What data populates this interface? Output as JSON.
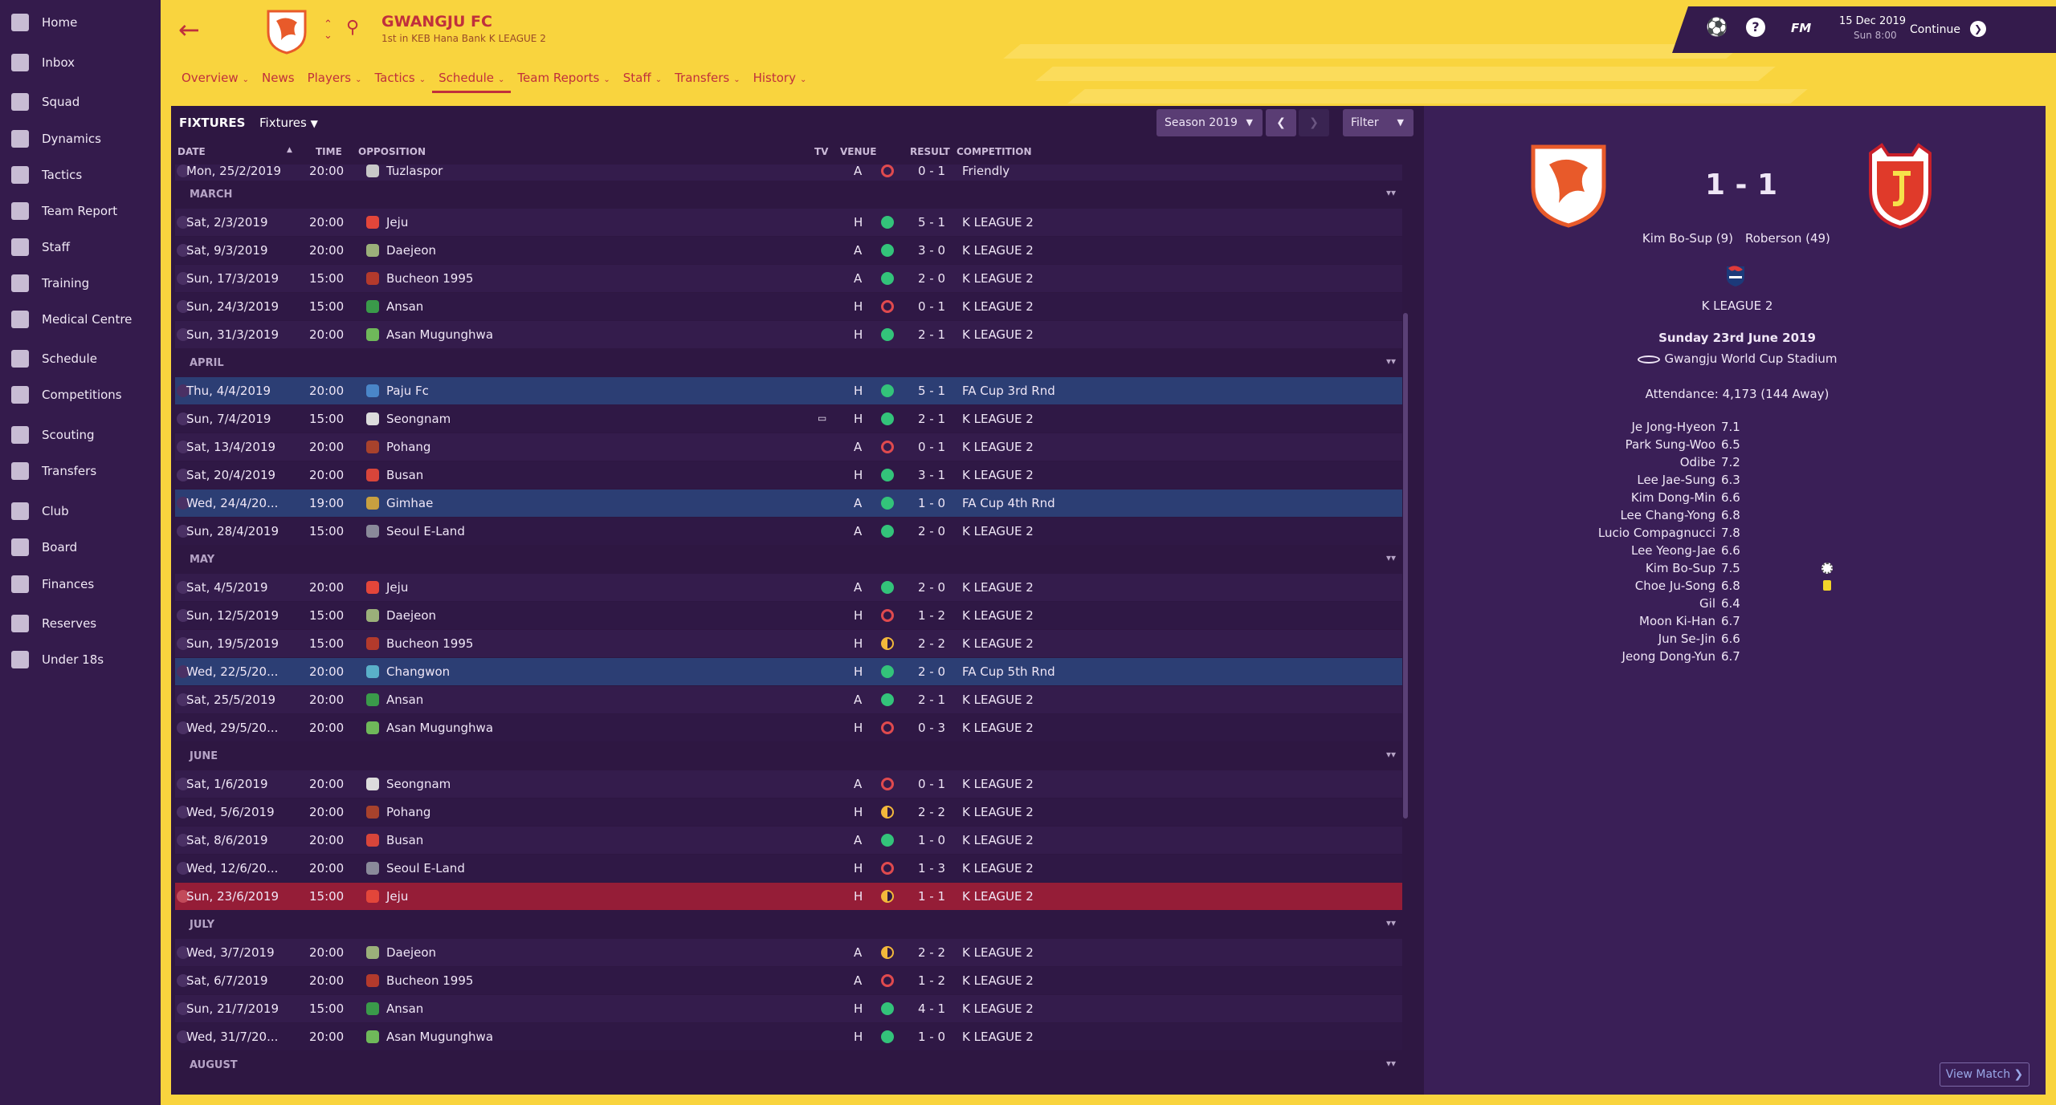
{
  "sidebar": {
    "items": [
      {
        "label": "Home",
        "icon": "home-icon"
      },
      {
        "label": "Inbox",
        "icon": "inbox-icon"
      },
      {
        "label": "Squad",
        "icon": "squad-icon"
      },
      {
        "label": "Dynamics",
        "icon": "dynamics-icon"
      },
      {
        "label": "Tactics",
        "icon": "tactics-icon"
      },
      {
        "label": "Team Report",
        "icon": "report-icon"
      },
      {
        "label": "Staff",
        "icon": "staff-icon"
      },
      {
        "label": "Training",
        "icon": "training-icon"
      },
      {
        "label": "Medical Centre",
        "icon": "medical-icon"
      },
      {
        "label": "Schedule",
        "icon": "calendar-icon"
      },
      {
        "label": "Competitions",
        "icon": "trophy-icon"
      },
      {
        "label": "Scouting",
        "icon": "search-icon"
      },
      {
        "label": "Transfers",
        "icon": "transfer-icon"
      },
      {
        "label": "Club",
        "icon": "shield-icon"
      },
      {
        "label": "Board",
        "icon": "briefcase-icon"
      },
      {
        "label": "Finances",
        "icon": "money-icon"
      },
      {
        "label": "Reserves",
        "icon": "reserves-icon"
      },
      {
        "label": "Under 18s",
        "icon": "u18-icon"
      }
    ]
  },
  "header": {
    "club_name": "GWANGJU FC",
    "club_sub": "1st in KEB Hana Bank K LEAGUE 2",
    "nav": [
      "Overview",
      "News",
      "Players",
      "Tactics",
      "Schedule",
      "Team Reports",
      "Staff",
      "Transfers",
      "History"
    ],
    "nav_dropdown": [
      true,
      false,
      true,
      true,
      true,
      true,
      true,
      true,
      true
    ],
    "active_nav": "Schedule",
    "date": "15 Dec 2019",
    "time": "Sun 8:00",
    "fm_label": "FM",
    "continue_label": "Continue"
  },
  "toolbar": {
    "title": "FIXTURES",
    "view": "Fixtures",
    "season": "Season 2019",
    "filter": "Filter"
  },
  "columns": {
    "date": "DATE",
    "time": "TIME",
    "opposition": "OPPOSITION",
    "tv": "TV",
    "venue": "VENUE",
    "result": "RESULT",
    "competition": "COMPETITION"
  },
  "fixtures": [
    {
      "type": "row",
      "date": "Mon, 25/2/2019",
      "time": "20:00",
      "opp": "Tuzlaspor",
      "venue": "A",
      "outcome": "L",
      "result": "0 - 1",
      "comp": "Friendly",
      "badge": "#c8c8c8",
      "partial": true
    },
    {
      "type": "month",
      "label": "MARCH"
    },
    {
      "type": "row",
      "date": "Sat, 2/3/2019",
      "time": "20:00",
      "opp": "Jeju",
      "venue": "H",
      "outcome": "W",
      "result": "5 - 1",
      "comp": "K LEAGUE 2",
      "badge": "#e3463a"
    },
    {
      "type": "row",
      "date": "Sat, 9/3/2019",
      "time": "20:00",
      "opp": "Daejeon",
      "venue": "A",
      "outcome": "W",
      "result": "3 - 0",
      "comp": "K LEAGUE 2",
      "badge": "#9bb07a"
    },
    {
      "type": "row",
      "date": "Sun, 17/3/2019",
      "time": "15:00",
      "opp": "Bucheon 1995",
      "venue": "A",
      "outcome": "W",
      "result": "2 - 0",
      "comp": "K LEAGUE 2",
      "badge": "#b33a2c"
    },
    {
      "type": "row",
      "date": "Sun, 24/3/2019",
      "time": "15:00",
      "opp": "Ansan",
      "venue": "H",
      "outcome": "L",
      "result": "0 - 1",
      "comp": "K LEAGUE 2",
      "badge": "#3a9a4a"
    },
    {
      "type": "row",
      "date": "Sun, 31/3/2019",
      "time": "20:00",
      "opp": "Asan Mugunghwa",
      "venue": "H",
      "outcome": "W",
      "result": "2 - 1",
      "comp": "K LEAGUE 2",
      "badge": "#6fb85a"
    },
    {
      "type": "month",
      "label": "APRIL"
    },
    {
      "type": "row",
      "date": "Thu, 4/4/2019",
      "time": "20:00",
      "opp": "Paju Fc",
      "venue": "H",
      "outcome": "W",
      "result": "5 - 1",
      "comp": "FA Cup 3rd Rnd",
      "badge": "#4a86c8",
      "cup": true
    },
    {
      "type": "row",
      "date": "Sun, 7/4/2019",
      "time": "15:00",
      "opp": "Seongnam",
      "venue": "H",
      "outcome": "W",
      "result": "2 - 1",
      "comp": "K LEAGUE 2",
      "badge": "#dcdcdc",
      "tv": true
    },
    {
      "type": "row",
      "date": "Sat, 13/4/2019",
      "time": "20:00",
      "opp": "Pohang",
      "venue": "A",
      "outcome": "L",
      "result": "0 - 1",
      "comp": "K LEAGUE 2",
      "badge": "#a8422c"
    },
    {
      "type": "row",
      "date": "Sat, 20/4/2019",
      "time": "20:00",
      "opp": "Busan",
      "venue": "H",
      "outcome": "W",
      "result": "3 - 1",
      "comp": "K LEAGUE 2",
      "badge": "#d8453a"
    },
    {
      "type": "row",
      "date": "Wed, 24/4/20...",
      "time": "19:00",
      "opp": "Gimhae",
      "venue": "A",
      "outcome": "W",
      "result": "1 - 0",
      "comp": "FA Cup 4th Rnd",
      "badge": "#c8a040",
      "cup": true
    },
    {
      "type": "row",
      "date": "Sun, 28/4/2019",
      "time": "15:00",
      "opp": "Seoul E-Land",
      "venue": "A",
      "outcome": "W",
      "result": "2 - 0",
      "comp": "K LEAGUE 2",
      "badge": "#8a8a9a"
    },
    {
      "type": "month",
      "label": "MAY"
    },
    {
      "type": "row",
      "date": "Sat, 4/5/2019",
      "time": "20:00",
      "opp": "Jeju",
      "venue": "A",
      "outcome": "W",
      "result": "2 - 0",
      "comp": "K LEAGUE 2",
      "badge": "#e3463a"
    },
    {
      "type": "row",
      "date": "Sun, 12/5/2019",
      "time": "15:00",
      "opp": "Daejeon",
      "venue": "H",
      "outcome": "L",
      "result": "1 - 2",
      "comp": "K LEAGUE 2",
      "badge": "#9bb07a"
    },
    {
      "type": "row",
      "date": "Sun, 19/5/2019",
      "time": "15:00",
      "opp": "Bucheon 1995",
      "venue": "H",
      "outcome": "D",
      "result": "2 - 2",
      "comp": "K LEAGUE 2",
      "badge": "#b33a2c"
    },
    {
      "type": "row",
      "date": "Wed, 22/5/20...",
      "time": "20:00",
      "opp": "Changwon",
      "venue": "H",
      "outcome": "W",
      "result": "2 - 0",
      "comp": "FA Cup 5th Rnd",
      "badge": "#5ab0c8",
      "cup": true
    },
    {
      "type": "row",
      "date": "Sat, 25/5/2019",
      "time": "20:00",
      "opp": "Ansan",
      "venue": "A",
      "outcome": "W",
      "result": "2 - 1",
      "comp": "K LEAGUE 2",
      "badge": "#3a9a4a"
    },
    {
      "type": "row",
      "date": "Wed, 29/5/20...",
      "time": "20:00",
      "opp": "Asan Mugunghwa",
      "venue": "H",
      "outcome": "L",
      "result": "0 - 3",
      "comp": "K LEAGUE 2",
      "badge": "#6fb85a"
    },
    {
      "type": "month",
      "label": "JUNE"
    },
    {
      "type": "row",
      "date": "Sat, 1/6/2019",
      "time": "20:00",
      "opp": "Seongnam",
      "venue": "A",
      "outcome": "L",
      "result": "0 - 1",
      "comp": "K LEAGUE 2",
      "badge": "#dcdcdc"
    },
    {
      "type": "row",
      "date": "Wed, 5/6/2019",
      "time": "20:00",
      "opp": "Pohang",
      "venue": "H",
      "outcome": "D",
      "result": "2 - 2",
      "comp": "K LEAGUE 2",
      "badge": "#a8422c"
    },
    {
      "type": "row",
      "date": "Sat, 8/6/2019",
      "time": "20:00",
      "opp": "Busan",
      "venue": "A",
      "outcome": "W",
      "result": "1 - 0",
      "comp": "K LEAGUE 2",
      "badge": "#d8453a"
    },
    {
      "type": "row",
      "date": "Wed, 12/6/20...",
      "time": "20:00",
      "opp": "Seoul E-Land",
      "venue": "H",
      "outcome": "L",
      "result": "1 - 3",
      "comp": "K LEAGUE 2",
      "badge": "#8a8a9a"
    },
    {
      "type": "row",
      "date": "Sun, 23/6/2019",
      "time": "15:00",
      "opp": "Jeju",
      "venue": "H",
      "outcome": "D",
      "result": "1 - 1",
      "comp": "K LEAGUE 2",
      "badge": "#e3463a",
      "current": true
    },
    {
      "type": "month",
      "label": "JULY"
    },
    {
      "type": "row",
      "date": "Wed, 3/7/2019",
      "time": "20:00",
      "opp": "Daejeon",
      "venue": "A",
      "outcome": "D",
      "result": "2 - 2",
      "comp": "K LEAGUE 2",
      "badge": "#9bb07a"
    },
    {
      "type": "row",
      "date": "Sat, 6/7/2019",
      "time": "20:00",
      "opp": "Bucheon 1995",
      "venue": "A",
      "outcome": "L",
      "result": "1 - 2",
      "comp": "K LEAGUE 2",
      "badge": "#b33a2c"
    },
    {
      "type": "row",
      "date": "Sun, 21/7/2019",
      "time": "15:00",
      "opp": "Ansan",
      "venue": "H",
      "outcome": "W",
      "result": "4 - 1",
      "comp": "K LEAGUE 2",
      "badge": "#3a9a4a"
    },
    {
      "type": "row",
      "date": "Wed, 31/7/20...",
      "time": "20:00",
      "opp": "Asan Mugunghwa",
      "venue": "H",
      "outcome": "W",
      "result": "1 - 0",
      "comp": "K LEAGUE 2",
      "badge": "#6fb85a"
    },
    {
      "type": "month",
      "label": "AUGUST"
    }
  ],
  "match": {
    "score": "1 - 1",
    "home_scorer": "Kim Bo-Sup (9)",
    "away_scorer": "Roberson (49)",
    "competition": "K LEAGUE 2",
    "date": "Sunday 23rd June 2019",
    "stadium": "Gwangju World Cup Stadium",
    "attendance": "Attendance: 4,173 (144 Away)",
    "view_match": "View Match",
    "ratings": [
      {
        "name": "Je Jong-Hyeon",
        "rating": "7.1"
      },
      {
        "name": "Park Sung-Woo",
        "rating": "6.5"
      },
      {
        "name": "Odibe",
        "rating": "7.2"
      },
      {
        "name": "Lee Jae-Sung",
        "rating": "6.3"
      },
      {
        "name": "Kim Dong-Min",
        "rating": "6.6"
      },
      {
        "name": "Lee Chang-Yong",
        "rating": "6.8"
      },
      {
        "name": "Lucio Compagnucci",
        "rating": "7.8"
      },
      {
        "name": "Lee Yeong-Jae",
        "rating": "6.6"
      },
      {
        "name": "Kim Bo-Sup",
        "rating": "7.5",
        "icon": "ball-icon"
      },
      {
        "name": "Choe Ju-Song",
        "rating": "6.8",
        "icon": "yellow-card-icon"
      },
      {
        "name": "Gil",
        "rating": "6.4"
      },
      {
        "name": "Moon Ki-Han",
        "rating": "6.7"
      },
      {
        "name": "Jun Se-Jin",
        "rating": "6.6"
      },
      {
        "name": "Jeong Dong-Yun",
        "rating": "6.7"
      }
    ]
  },
  "colors": {
    "accent": "#c0303c",
    "win": "#33c37a",
    "loss": "#e04a4e",
    "draw": "#f3b83b",
    "current_row": "#951d37",
    "cup_row": "#2c3e74"
  }
}
